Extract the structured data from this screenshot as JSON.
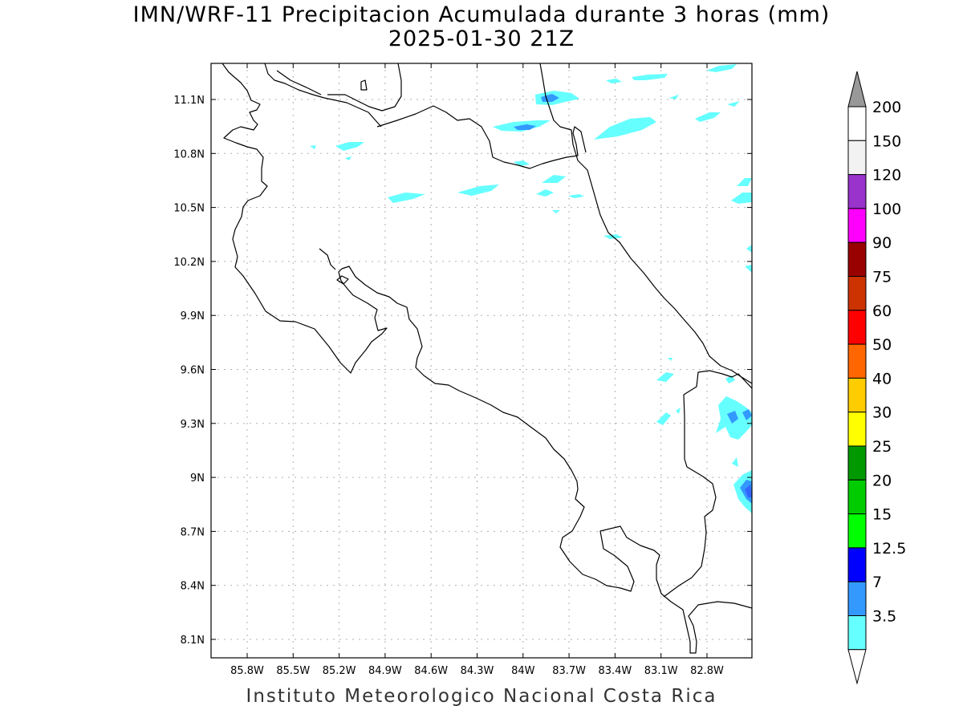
{
  "title": {
    "line1": "IMN/WRF-11 Precipitacion Acumulada durante 3 horas (mm)",
    "line2": "2025-01-30 21Z"
  },
  "map": {
    "lon_labels": [
      "85.8W",
      "85.5W",
      "85.2W",
      "84.9W",
      "84.6W",
      "84.3W",
      "84W",
      "83.7W",
      "83.4W",
      "83.1W",
      "82.8W"
    ],
    "lat_labels": [
      "11.1N",
      "10.8N",
      "10.5N",
      "10.2N",
      "9.9N",
      "9.6N",
      "9.3N",
      "9N",
      "8.7N",
      "8.4N",
      "8.1N"
    ],
    "grid": true,
    "coastline_color": "#000000",
    "grid_color": "#b0b0b0"
  },
  "colorbar": {
    "labels": [
      "200",
      "150",
      "120",
      "100",
      "90",
      "75",
      "60",
      "50",
      "40",
      "30",
      "25",
      "20",
      "15",
      "12.5",
      "7",
      "3.5"
    ],
    "colors": [
      "#ffffff",
      "#f2f2f2",
      "#9933cc",
      "#ff00ff",
      "#990000",
      "#cc3300",
      "#ff0000",
      "#ff6600",
      "#ffcc00",
      "#ffff00",
      "#009900",
      "#00cc00",
      "#00ff00",
      "#0000ff",
      "#3399ff",
      "#66ffff"
    ],
    "top_arrow_color": "#999999",
    "bottom_arrow_color": "#ffffff"
  },
  "precip_colors": {
    "light": "#66ffff",
    "medium": "#3399ff",
    "heavy": "#3366ff"
  },
  "footer": "Instituto Meteorologico Nacional Costa Rica"
}
